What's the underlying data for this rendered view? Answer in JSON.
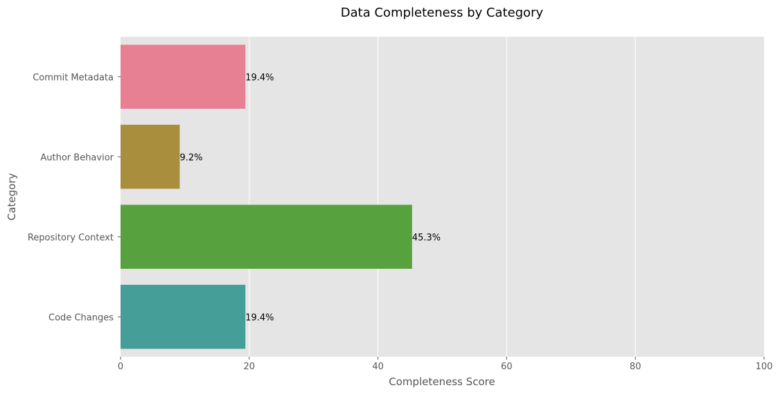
{
  "chart_data": {
    "type": "bar",
    "orientation": "horizontal",
    "title": "Data Completeness by Category",
    "xlabel": "Completeness Score",
    "ylabel": "Category",
    "categories": [
      "Commit Metadata",
      "Author Behavior",
      "Repository Context",
      "Code Changes"
    ],
    "values": [
      19.4,
      9.2,
      45.3,
      19.4
    ],
    "value_labels": [
      "19.4%",
      "9.2%",
      "45.3%",
      "19.4%"
    ],
    "bar_colors": [
      "#e88093",
      "#a98e3e",
      "#57a23f",
      "#459e97"
    ],
    "xlim": [
      0,
      100
    ],
    "xticks": [
      0,
      20,
      40,
      60,
      80,
      100
    ],
    "xtick_labels": [
      "0",
      "20",
      "40",
      "60",
      "80",
      "100"
    ],
    "grid": true,
    "background_color": "#e5e5e5",
    "grid_color": "#ffffff"
  }
}
